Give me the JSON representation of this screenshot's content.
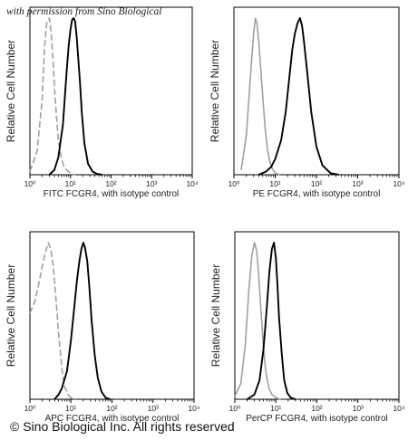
{
  "header": {
    "permission": "with permission from Sino Biological"
  },
  "footer": {
    "copyright": "© Sino Biological Inc. All rights reserved"
  },
  "chart_data": [
    {
      "type": "histogram",
      "ylabel": "Relative Cell Number",
      "xlabel": "FITC  FCGR4,  with isotype control",
      "xscale": "log",
      "xlim": [
        1,
        10000
      ],
      "xticks": [
        "10⁰",
        "10¹",
        "10²",
        "10³",
        "10⁴"
      ],
      "ylim": [
        0,
        100
      ],
      "series": [
        {
          "role": "isotype-control",
          "color": "#a0a0a0",
          "dash": "dashed",
          "x": [
            1,
            1.5,
            2,
            2.3,
            2.6,
            3,
            3.3,
            3.7,
            4.2,
            5,
            5.8,
            6.7,
            8,
            10,
            13
          ],
          "y": [
            2,
            15,
            48,
            82,
            97,
            100,
            92,
            74,
            48,
            22,
            12,
            6,
            3,
            1,
            0
          ]
        },
        {
          "role": "FCGR4",
          "color": "#000000",
          "dash": "solid",
          "x": [
            3,
            4,
            5,
            6.5,
            8,
            9,
            10,
            11,
            12,
            13,
            14,
            15,
            17,
            19,
            22,
            27,
            35,
            45,
            60
          ],
          "y": [
            0,
            3,
            11,
            32,
            65,
            82,
            93,
            99,
            100,
            98,
            90,
            80,
            60,
            40,
            20,
            7,
            2,
            0.5,
            0
          ]
        }
      ]
    },
    {
      "type": "histogram",
      "ylabel": "Relative Cell Number",
      "xlabel": "PE FCGR4, with isotype control",
      "xscale": "log",
      "xlim": [
        1,
        10000
      ],
      "xticks": [
        "10⁰",
        "10¹",
        "10²",
        "10³",
        "10⁴"
      ],
      "ylim": [
        0,
        100
      ],
      "series": [
        {
          "role": "isotype-control",
          "color": "#a0a0a0",
          "dash": "solid",
          "x": [
            1.5,
            2,
            2.5,
            3,
            3.3,
            3.6,
            4,
            4.4,
            5,
            5.7,
            6.5,
            7.5,
            8.5,
            10,
            13
          ],
          "y": [
            3,
            25,
            62,
            90,
            100,
            97,
            85,
            70,
            50,
            30,
            16,
            8,
            4,
            1,
            0
          ]
        },
        {
          "role": "FCGR4",
          "color": "#000000",
          "dash": "solid",
          "x": [
            4,
            6,
            8,
            10,
            14,
            18,
            22,
            26,
            30,
            35,
            40,
            45,
            50,
            60,
            75,
            100,
            140,
            220,
            350
          ],
          "y": [
            0,
            2,
            5,
            10,
            22,
            40,
            62,
            80,
            90,
            97,
            100,
            95,
            85,
            65,
            40,
            18,
            6,
            1,
            0
          ]
        }
      ]
    },
    {
      "type": "histogram",
      "ylabel": "Relative Cell Number",
      "xlabel": "APC FCGR4, with isotype control",
      "xscale": "log",
      "xlim": [
        1,
        10000
      ],
      "xticks": [
        "10⁰",
        "10¹",
        "10²",
        "10³",
        "10⁴"
      ],
      "ylim": [
        0,
        100
      ],
      "series": [
        {
          "role": "isotype-control",
          "color": "#a0a0a0",
          "dash": "dashed",
          "x": [
            1,
            1.3,
            1.6,
            2,
            2.4,
            2.8,
            3.2,
            3.7,
            4.2,
            5,
            6,
            7,
            8.5,
            10,
            13
          ],
          "y": [
            55,
            62,
            72,
            85,
            94,
            100,
            96,
            85,
            68,
            42,
            20,
            8,
            3,
            1,
            0
          ]
        },
        {
          "role": "FCGR4",
          "color": "#000000",
          "dash": "solid",
          "x": [
            4,
            5,
            6,
            8,
            10,
            12,
            14,
            16,
            18,
            20,
            22,
            25,
            28,
            32,
            38,
            45,
            55,
            70,
            90
          ],
          "y": [
            0,
            3,
            7,
            18,
            38,
            58,
            76,
            88,
            96,
            100,
            97,
            88,
            72,
            50,
            28,
            14,
            5,
            1,
            0
          ]
        }
      ]
    },
    {
      "type": "histogram",
      "ylabel": "Relative Cell Number",
      "xlabel": "PerCP FCGR4, with isotype control",
      "xscale": "log",
      "xlim": [
        1,
        10000
      ],
      "xticks": [
        "10⁰",
        "10¹",
        "10²",
        "10³",
        "10⁴"
      ],
      "ylim": [
        0,
        100
      ],
      "series": [
        {
          "role": "isotype-control",
          "color": "#a0a0a0",
          "dash": "solid",
          "x": [
            1,
            1.4,
            1.8,
            2.2,
            2.6,
            3,
            3.4,
            3.8,
            4.3,
            5,
            5.8,
            6.8,
            8,
            10,
            13
          ],
          "y": [
            2,
            10,
            35,
            70,
            92,
            100,
            95,
            80,
            58,
            33,
            16,
            7,
            3,
            1,
            0
          ]
        },
        {
          "role": "FCGR4",
          "color": "#000000",
          "dash": "solid",
          "x": [
            2,
            3,
            4,
            5,
            6,
            7,
            8,
            9,
            10,
            11,
            12,
            14,
            16,
            19,
            23,
            30
          ],
          "y": [
            0,
            3,
            12,
            32,
            58,
            82,
            96,
            100,
            90,
            72,
            52,
            28,
            12,
            4,
            1,
            0
          ]
        }
      ]
    }
  ]
}
